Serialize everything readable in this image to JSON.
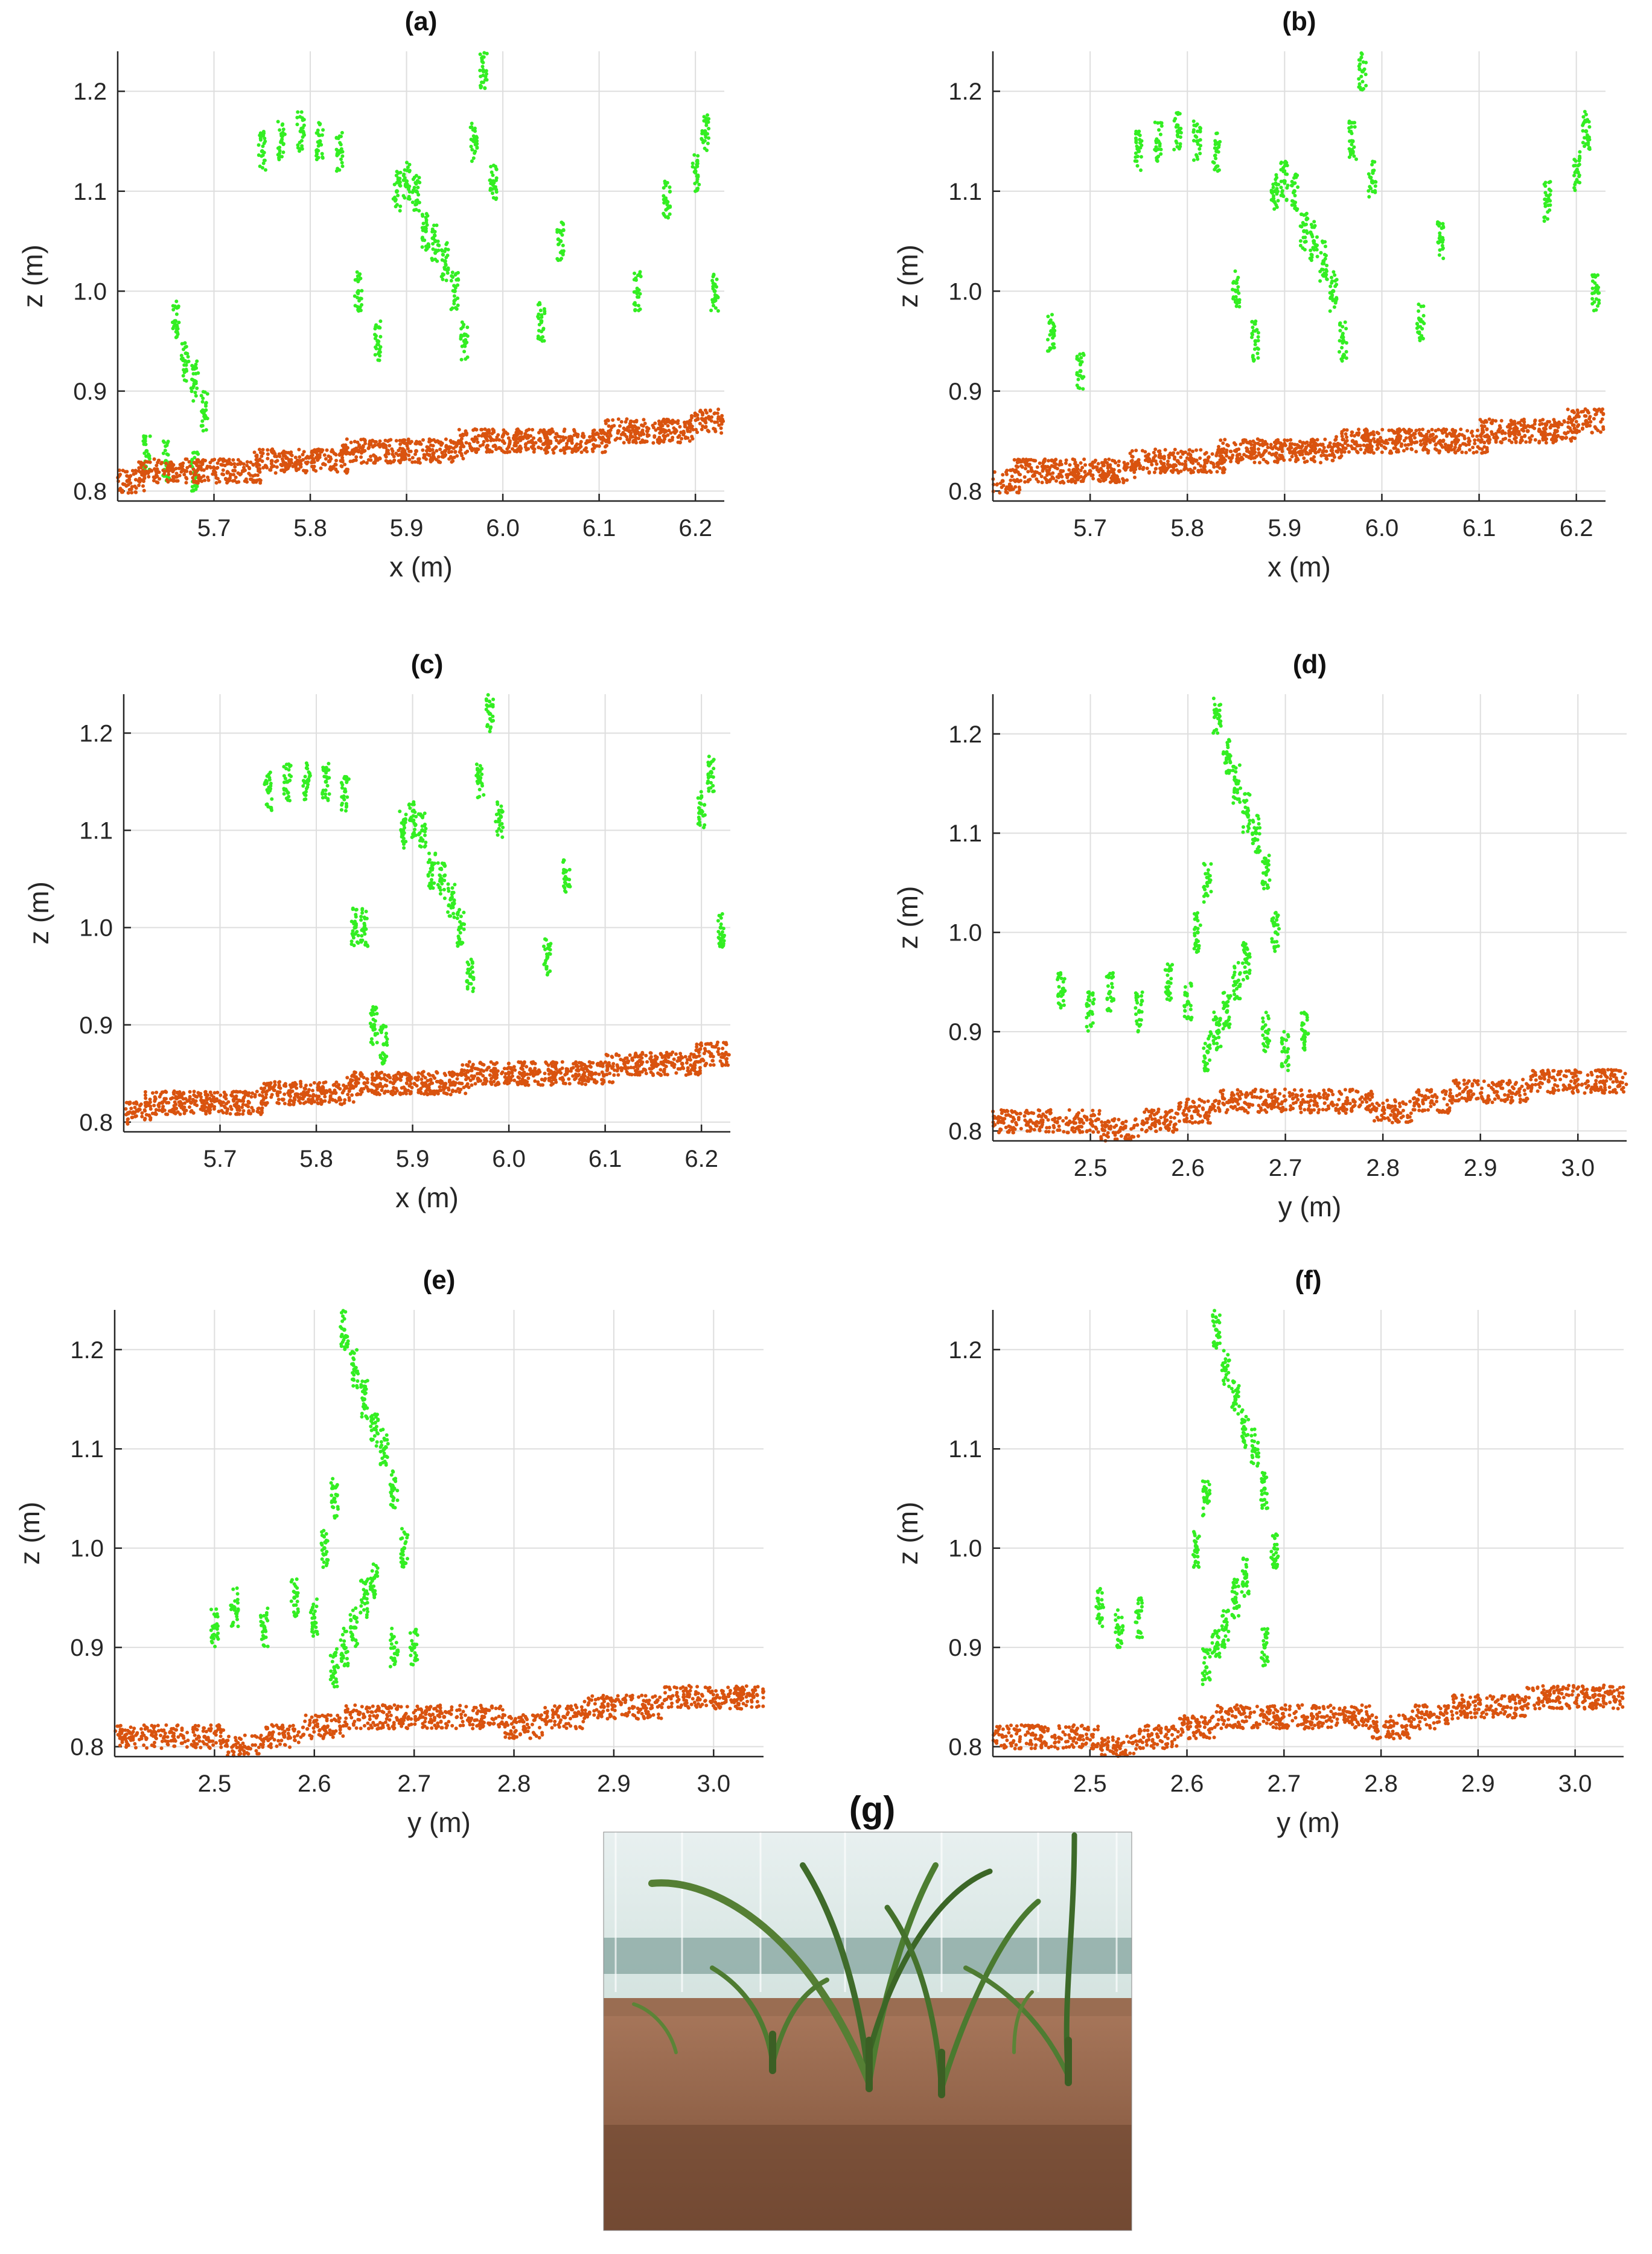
{
  "colors": {
    "plant": "#33ee22",
    "soil": "#d9530f",
    "grid": "#dedede",
    "axis": "#262626"
  },
  "chart_data": [
    {
      "type": "scatter",
      "title": "(a)",
      "xlabel": "x (m)",
      "ylabel": "z (m)",
      "xlim": [
        5.6,
        6.23
      ],
      "ylim": [
        0.79,
        1.24
      ],
      "xticks": [
        "5.7",
        "5.8",
        "5.9",
        "6.0",
        "6.1",
        "6.2"
      ],
      "yticks": [
        "0.8",
        "0.9",
        "1.0",
        "1.1",
        "1.2"
      ],
      "grid": true,
      "series": [
        {
          "role": "plant",
          "x": [
            5.66,
            5.67,
            5.68,
            5.69,
            5.75,
            5.77,
            5.79,
            5.81,
            5.83,
            5.85,
            5.87,
            5.89,
            5.9,
            5.91,
            5.92,
            5.93,
            5.94,
            5.95,
            5.96,
            5.97,
            5.98,
            5.99,
            6.04,
            6.06,
            6.14,
            6.17,
            6.2,
            6.21,
            6.22,
            5.63,
            5.65,
            5.68
          ],
          "y": [
            0.97,
            0.93,
            0.91,
            0.88,
            1.14,
            1.15,
            1.16,
            1.15,
            1.14,
            1.0,
            0.95,
            1.1,
            1.11,
            1.1,
            1.06,
            1.05,
            1.03,
            1.0,
            0.95,
            1.15,
            1.22,
            1.11,
            0.97,
            1.05,
            1.0,
            1.09,
            1.12,
            1.16,
            1.0,
            0.84,
            0.83,
            0.82
          ]
        },
        {
          "role": "soil",
          "x": [
            5.61,
            5.64,
            5.67,
            5.7,
            5.73,
            5.76,
            5.79,
            5.82,
            5.85,
            5.88,
            5.91,
            5.94,
            5.97,
            6.0,
            6.03,
            6.06,
            6.09,
            6.12,
            6.15,
            6.18,
            6.21
          ],
          "y": [
            0.81,
            0.82,
            0.82,
            0.82,
            0.82,
            0.83,
            0.83,
            0.83,
            0.84,
            0.84,
            0.84,
            0.84,
            0.85,
            0.85,
            0.85,
            0.85,
            0.85,
            0.86,
            0.86,
            0.86,
            0.87
          ]
        }
      ]
    },
    {
      "type": "scatter",
      "title": "(b)",
      "xlabel": "x (m)",
      "ylabel": "z (m)",
      "xlim": [
        5.6,
        6.23
      ],
      "ylim": [
        0.79,
        1.24
      ],
      "xticks": [
        "5.7",
        "5.8",
        "5.9",
        "6.0",
        "6.1",
        "6.2"
      ],
      "yticks": [
        "0.8",
        "0.9",
        "1.0",
        "1.1",
        "1.2"
      ],
      "grid": true,
      "series": [
        {
          "role": "plant",
          "x": [
            5.66,
            5.69,
            5.75,
            5.77,
            5.79,
            5.81,
            5.83,
            5.85,
            5.87,
            5.89,
            5.9,
            5.91,
            5.92,
            5.93,
            5.94,
            5.95,
            5.96,
            5.97,
            5.98,
            5.99,
            6.04,
            6.06,
            6.17,
            6.2,
            6.21,
            6.22
          ],
          "y": [
            0.96,
            0.92,
            1.14,
            1.15,
            1.16,
            1.15,
            1.14,
            1.0,
            0.95,
            1.1,
            1.11,
            1.1,
            1.06,
            1.05,
            1.03,
            1.0,
            0.95,
            1.15,
            1.22,
            1.11,
            0.97,
            1.05,
            1.09,
            1.12,
            1.16,
            1.0
          ]
        },
        {
          "role": "soil",
          "x": [
            5.61,
            5.64,
            5.67,
            5.7,
            5.73,
            5.76,
            5.79,
            5.82,
            5.85,
            5.88,
            5.91,
            5.94,
            5.97,
            6.0,
            6.03,
            6.06,
            6.09,
            6.12,
            6.15,
            6.18,
            6.21
          ],
          "y": [
            0.81,
            0.82,
            0.82,
            0.82,
            0.82,
            0.83,
            0.83,
            0.83,
            0.84,
            0.84,
            0.84,
            0.84,
            0.85,
            0.85,
            0.85,
            0.85,
            0.85,
            0.86,
            0.86,
            0.86,
            0.87
          ]
        }
      ]
    },
    {
      "type": "scatter",
      "title": "(c)",
      "xlabel": "x (m)",
      "ylabel": "z (m)",
      "xlim": [
        5.6,
        6.23
      ],
      "ylim": [
        0.79,
        1.24
      ],
      "xticks": [
        "5.7",
        "5.8",
        "5.9",
        "6.0",
        "6.1",
        "6.2"
      ],
      "yticks": [
        "0.8",
        "0.9",
        "1.0",
        "1.1",
        "1.2"
      ],
      "grid": true,
      "series": [
        {
          "role": "plant",
          "x": [
            5.75,
            5.77,
            5.79,
            5.81,
            5.83,
            5.85,
            5.87,
            5.89,
            5.9,
            5.91,
            5.92,
            5.93,
            5.94,
            5.95,
            5.96,
            5.97,
            5.98,
            5.99,
            6.04,
            6.06,
            6.2,
            6.21,
            6.22,
            5.84,
            5.86
          ],
          "y": [
            1.14,
            1.15,
            1.15,
            1.15,
            1.14,
            1.0,
            0.88,
            1.1,
            1.11,
            1.1,
            1.06,
            1.05,
            1.03,
            1.0,
            0.95,
            1.15,
            1.22,
            1.11,
            0.97,
            1.05,
            1.12,
            1.16,
            1.0,
            1.0,
            0.9
          ]
        },
        {
          "role": "soil",
          "x": [
            5.61,
            5.64,
            5.67,
            5.7,
            5.73,
            5.76,
            5.79,
            5.82,
            5.85,
            5.88,
            5.91,
            5.94,
            5.97,
            6.0,
            6.03,
            6.06,
            6.09,
            6.12,
            6.15,
            6.18,
            6.21
          ],
          "y": [
            0.81,
            0.82,
            0.82,
            0.82,
            0.82,
            0.83,
            0.83,
            0.83,
            0.84,
            0.84,
            0.84,
            0.84,
            0.85,
            0.85,
            0.85,
            0.85,
            0.85,
            0.86,
            0.86,
            0.86,
            0.87
          ]
        }
      ]
    },
    {
      "type": "scatter",
      "title": "(d)",
      "xlabel": "y (m)",
      "ylabel": "z (m)",
      "xlim": [
        2.4,
        3.05
      ],
      "ylim": [
        0.79,
        1.24
      ],
      "xticks": [
        "2.5",
        "2.6",
        "2.7",
        "2.8",
        "2.9",
        "3.0"
      ],
      "yticks": [
        "0.8",
        "0.9",
        "1.0",
        "1.1",
        "1.2"
      ],
      "grid": true,
      "series": [
        {
          "role": "plant",
          "x": [
            2.63,
            2.64,
            2.65,
            2.66,
            2.67,
            2.68,
            2.69,
            2.66,
            2.65,
            2.64,
            2.63,
            2.62,
            2.6,
            2.58,
            2.55,
            2.52,
            2.5,
            2.47,
            2.68,
            2.7,
            2.72,
            2.62,
            2.61
          ],
          "y": [
            1.22,
            1.18,
            1.15,
            1.12,
            1.1,
            1.06,
            1.0,
            0.97,
            0.95,
            0.92,
            0.9,
            0.88,
            0.93,
            0.95,
            0.92,
            0.94,
            0.92,
            0.94,
            0.9,
            0.88,
            0.9,
            1.05,
            1.0
          ]
        },
        {
          "role": "soil",
          "x": [
            2.41,
            2.45,
            2.49,
            2.53,
            2.57,
            2.61,
            2.65,
            2.69,
            2.73,
            2.77,
            2.81,
            2.85,
            2.89,
            2.93,
            2.97,
            3.01,
            3.04
          ],
          "y": [
            0.81,
            0.81,
            0.81,
            0.8,
            0.81,
            0.82,
            0.83,
            0.83,
            0.83,
            0.83,
            0.82,
            0.83,
            0.84,
            0.84,
            0.85,
            0.85,
            0.85
          ]
        }
      ]
    },
    {
      "type": "scatter",
      "title": "(e)",
      "xlabel": "y (m)",
      "ylabel": "z (m)",
      "xlim": [
        2.4,
        3.05
      ],
      "ylim": [
        0.79,
        1.24
      ],
      "xticks": [
        "2.5",
        "2.6",
        "2.7",
        "2.8",
        "2.9",
        "3.0"
      ],
      "yticks": [
        "0.8",
        "0.9",
        "1.0",
        "1.1",
        "1.2"
      ],
      "grid": true,
      "series": [
        {
          "role": "plant",
          "x": [
            2.63,
            2.64,
            2.65,
            2.66,
            2.67,
            2.68,
            2.69,
            2.66,
            2.65,
            2.64,
            2.63,
            2.62,
            2.6,
            2.58,
            2.55,
            2.52,
            2.5,
            2.68,
            2.7,
            2.62,
            2.61
          ],
          "y": [
            1.22,
            1.18,
            1.15,
            1.12,
            1.1,
            1.06,
            1.0,
            0.97,
            0.95,
            0.92,
            0.9,
            0.88,
            0.93,
            0.95,
            0.92,
            0.94,
            0.92,
            0.9,
            0.9,
            1.05,
            1.0
          ]
        },
        {
          "role": "soil",
          "x": [
            2.41,
            2.45,
            2.49,
            2.53,
            2.57,
            2.61,
            2.65,
            2.69,
            2.73,
            2.77,
            2.81,
            2.85,
            2.89,
            2.93,
            2.97,
            3.01,
            3.04
          ],
          "y": [
            0.81,
            0.81,
            0.81,
            0.8,
            0.81,
            0.82,
            0.83,
            0.83,
            0.83,
            0.83,
            0.82,
            0.83,
            0.84,
            0.84,
            0.85,
            0.85,
            0.85
          ]
        }
      ]
    },
    {
      "type": "scatter",
      "title": "(f)",
      "xlabel": "y (m)",
      "ylabel": "z (m)",
      "xlim": [
        2.4,
        3.05
      ],
      "ylim": [
        0.79,
        1.24
      ],
      "xticks": [
        "2.5",
        "2.6",
        "2.7",
        "2.8",
        "2.9",
        "3.0"
      ],
      "yticks": [
        "0.8",
        "0.9",
        "1.0",
        "1.1",
        "1.2"
      ],
      "grid": true,
      "series": [
        {
          "role": "plant",
          "x": [
            2.63,
            2.64,
            2.65,
            2.66,
            2.67,
            2.68,
            2.69,
            2.66,
            2.65,
            2.64,
            2.63,
            2.62,
            2.55,
            2.53,
            2.51,
            2.68,
            2.62,
            2.61
          ],
          "y": [
            1.22,
            1.18,
            1.15,
            1.12,
            1.1,
            1.06,
            1.0,
            0.97,
            0.95,
            0.92,
            0.9,
            0.88,
            0.93,
            0.92,
            0.94,
            0.9,
            1.05,
            1.0
          ]
        },
        {
          "role": "soil",
          "x": [
            2.41,
            2.45,
            2.49,
            2.53,
            2.57,
            2.61,
            2.65,
            2.69,
            2.73,
            2.77,
            2.81,
            2.85,
            2.89,
            2.93,
            2.97,
            3.01,
            3.04
          ],
          "y": [
            0.81,
            0.81,
            0.81,
            0.8,
            0.81,
            0.82,
            0.83,
            0.83,
            0.83,
            0.83,
            0.82,
            0.83,
            0.84,
            0.84,
            0.85,
            0.85,
            0.85
          ]
        }
      ]
    }
  ],
  "photo": {
    "title": "(g)"
  }
}
